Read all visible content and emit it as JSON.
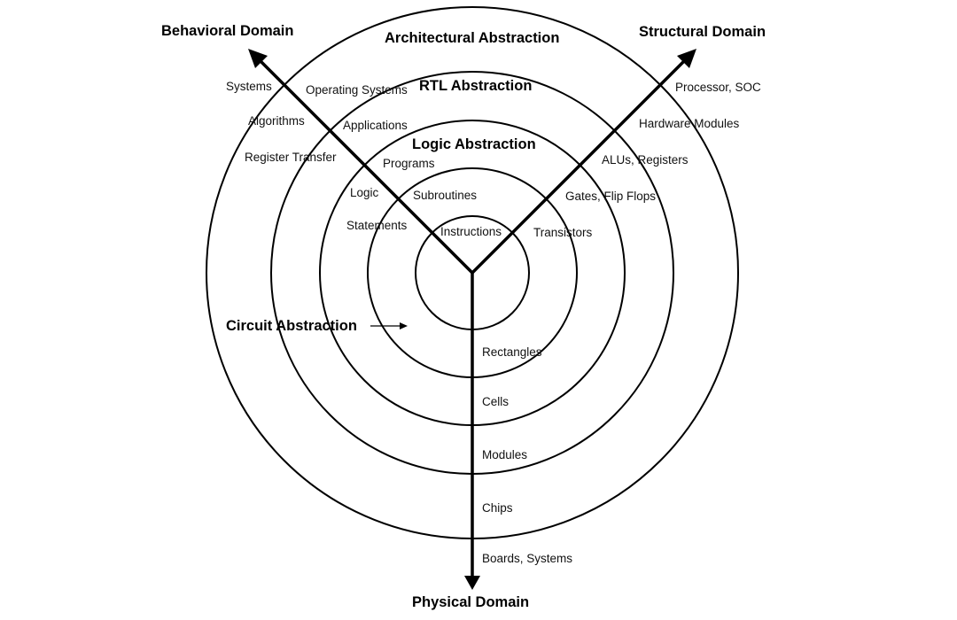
{
  "domains": {
    "behavioral": "Behavioral Domain",
    "structural": "Structural Domain",
    "physical": "Physical Domain"
  },
  "abstractions": {
    "architectural": "Architectural Abstraction",
    "rtl": "RTL Abstraction",
    "logic": "Logic Abstraction",
    "circuit": "Circuit Abstraction"
  },
  "behavioral_levels": {
    "systems": "Systems",
    "algorithms": "Algorithms",
    "register_transfer": "Register Transfer",
    "logic": "Logic",
    "statements": "Statements",
    "operating_systems": "Operating Systems",
    "applications": "Applications",
    "programs": "Programs",
    "subroutines": "Subroutines",
    "instructions": "Instructions"
  },
  "structural_levels": {
    "processor_soc": "Processor, SOC",
    "hardware_modules": "Hardware Modules",
    "alus_registers": "ALUs, Registers",
    "gates_flip_flops": "Gates, Flip Flops",
    "transistors": "Transistors"
  },
  "physical_levels": {
    "rectangles": "Rectangles",
    "cells": "Cells",
    "modules": "Modules",
    "chips": "Chips",
    "boards_systems": "Boards, Systems"
  }
}
